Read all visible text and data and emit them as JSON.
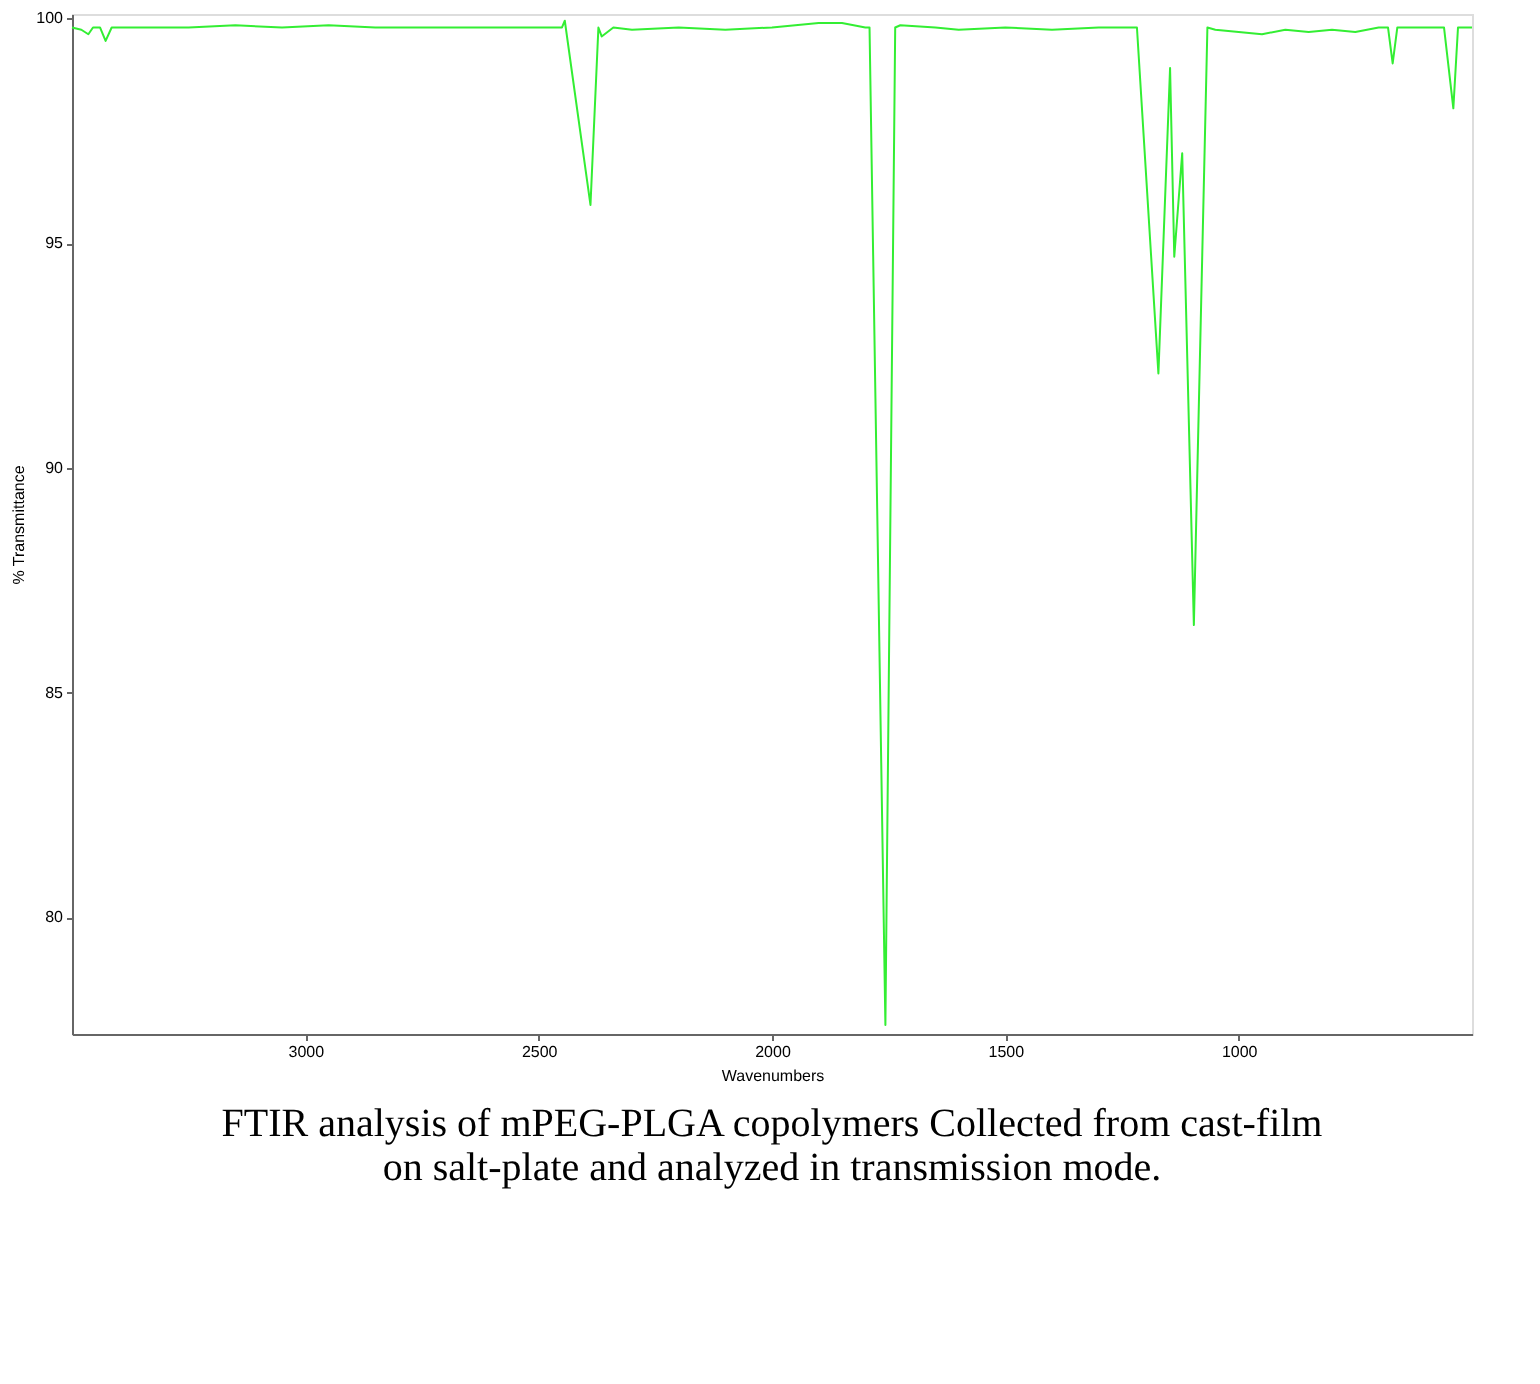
{
  "chart_data": {
    "type": "line",
    "xlabel": "Wavenumbers",
    "ylabel": "% Transmittance",
    "x": [
      3500,
      3480,
      3465,
      3455,
      3440,
      3428,
      3415,
      3350,
      3250,
      3150,
      3050,
      2950,
      2850,
      2750,
      2650,
      2550,
      2480,
      2450,
      2444,
      2389,
      2372,
      2365,
      2340,
      2300,
      2200,
      2100,
      2000,
      1950,
      1900,
      1850,
      1800,
      1791,
      1757,
      1736,
      1725,
      1650,
      1600,
      1500,
      1400,
      1300,
      1250,
      1218,
      1172,
      1147,
      1138,
      1121,
      1096,
      1067,
      1050,
      1000,
      950,
      900,
      850,
      800,
      750,
      700,
      680,
      670,
      660,
      600,
      560,
      540,
      530,
      500
    ],
    "series": [
      {
        "color": "#33ee33",
        "values": [
          99.8,
          99.75,
          99.65,
          99.8,
          99.8,
          99.5,
          99.8,
          99.8,
          99.8,
          99.85,
          99.8,
          99.85,
          99.8,
          99.8,
          99.8,
          99.8,
          99.8,
          99.8,
          99.95,
          95.85,
          99.8,
          99.6,
          99.8,
          99.75,
          99.8,
          99.75,
          99.8,
          99.85,
          99.9,
          99.9,
          99.8,
          99.8,
          77.6,
          99.8,
          99.85,
          99.8,
          99.75,
          99.8,
          99.75,
          99.8,
          99.8,
          99.8,
          92.1,
          98.9,
          94.7,
          97.0,
          86.5,
          99.8,
          99.75,
          99.7,
          99.65,
          99.75,
          99.7,
          99.75,
          99.7,
          99.8,
          99.8,
          99.0,
          99.8,
          99.8,
          99.8,
          98.0,
          99.8,
          99.8
        ]
      }
    ],
    "xlim": [
      3500,
      500
    ],
    "ylim": [
      77.4,
      100.1
    ],
    "xticks": [
      3000,
      2500,
      2000,
      1500,
      1000
    ],
    "yticks": [
      80,
      85,
      90,
      95,
      100
    ],
    "grid": false,
    "annotations": [
      "FTIR analysis of mPEG-PLGA copolymers Collected from cast-film on salt-plate and analyzed in transmission mode."
    ]
  }
}
